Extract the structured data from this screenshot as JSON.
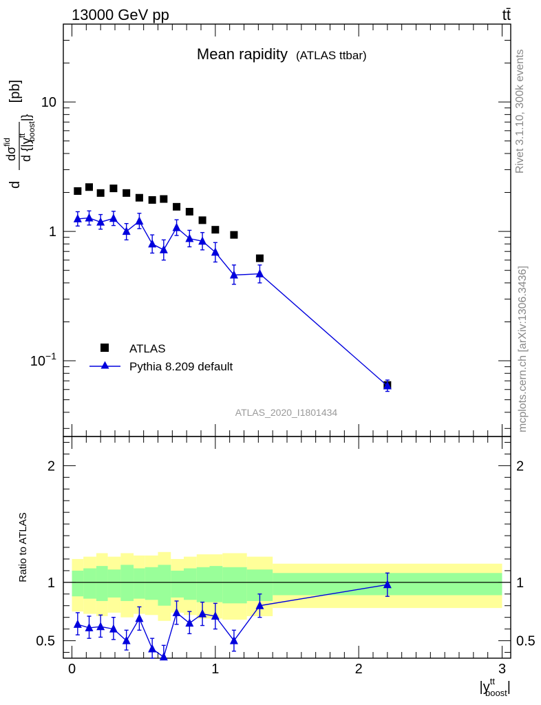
{
  "header": {
    "energy_label": "13000 GeV pp",
    "process_label": "tt̄"
  },
  "side": {
    "rivet_label": "Rivet 3.1.10,  300k events",
    "mcplots_label": "mcplots.cern.ch [arXiv:1306.3436]"
  },
  "chart_data": [
    {
      "type": "scatter",
      "panel": "main",
      "title": "Mean rapidity",
      "subtitle": "(ATLAS ttbar)",
      "watermark": "ATLAS_2020_I1801434",
      "ylabel": "d dσ/d {|y^tt_boost|} [pb]",
      "ylabel_parts": {
        "num_prefix": "d",
        "num": "dσ",
        "num_sup": "fid",
        "den": "d {|y",
        "den_sup": "tt",
        "den_sub": "boost",
        "den_close": "|}",
        "unit": "[pb]"
      },
      "yscale": "log",
      "xlim": [
        -0.06,
        3.06
      ],
      "ylim": [
        0.026,
        40
      ],
      "yticks": [
        {
          "value": 0.1,
          "base": "10",
          "exp": "−1"
        },
        {
          "value": 1,
          "base": "1",
          "exp": ""
        },
        {
          "value": 10,
          "base": "10",
          "exp": ""
        }
      ],
      "grid": false,
      "legend_position": "lower-left",
      "series": [
        {
          "name": "ATLAS",
          "color": "#000000",
          "marker": "square",
          "points": [
            {
              "x": 0.04,
              "y": 2.05
            },
            {
              "x": 0.12,
              "y": 2.2
            },
            {
              "x": 0.2,
              "y": 1.98
            },
            {
              "x": 0.29,
              "y": 2.15
            },
            {
              "x": 0.38,
              "y": 1.98
            },
            {
              "x": 0.47,
              "y": 1.82
            },
            {
              "x": 0.56,
              "y": 1.75
            },
            {
              "x": 0.64,
              "y": 1.78
            },
            {
              "x": 0.73,
              "y": 1.55
            },
            {
              "x": 0.82,
              "y": 1.42
            },
            {
              "x": 0.91,
              "y": 1.22
            },
            {
              "x": 1.0,
              "y": 1.03
            },
            {
              "x": 1.13,
              "y": 0.94
            },
            {
              "x": 1.31,
              "y": 0.62
            },
            {
              "x": 2.2,
              "y": 0.065
            }
          ]
        },
        {
          "name": "Pythia 8.209 default",
          "color": "#0000dd",
          "marker": "triangle",
          "points": [
            {
              "x": 0.04,
              "y": 1.25,
              "lo": 1.1,
              "hi": 1.42
            },
            {
              "x": 0.12,
              "y": 1.27,
              "lo": 1.12,
              "hi": 1.44
            },
            {
              "x": 0.2,
              "y": 1.18,
              "lo": 1.04,
              "hi": 1.35
            },
            {
              "x": 0.29,
              "y": 1.26,
              "lo": 1.11,
              "hi": 1.43
            },
            {
              "x": 0.38,
              "y": 1.0,
              "lo": 0.86,
              "hi": 1.15
            },
            {
              "x": 0.47,
              "y": 1.2,
              "lo": 1.05,
              "hi": 1.38
            },
            {
              "x": 0.56,
              "y": 0.8,
              "lo": 0.68,
              "hi": 0.94
            },
            {
              "x": 0.64,
              "y": 0.72,
              "lo": 0.6,
              "hi": 0.86
            },
            {
              "x": 0.73,
              "y": 1.07,
              "lo": 0.93,
              "hi": 1.23
            },
            {
              "x": 0.82,
              "y": 0.88,
              "lo": 0.76,
              "hi": 1.02
            },
            {
              "x": 0.91,
              "y": 0.84,
              "lo": 0.72,
              "hi": 0.98
            },
            {
              "x": 1.0,
              "y": 0.69,
              "lo": 0.58,
              "hi": 0.82
            },
            {
              "x": 1.13,
              "y": 0.46,
              "lo": 0.39,
              "hi": 0.55
            },
            {
              "x": 1.31,
              "y": 0.47,
              "lo": 0.4,
              "hi": 0.55
            },
            {
              "x": 2.2,
              "y": 0.064,
              "lo": 0.058,
              "hi": 0.071
            }
          ]
        }
      ]
    },
    {
      "type": "line",
      "panel": "ratio",
      "xlabel": "|y^tt_boost|",
      "xlabel_parts": {
        "main": "|y",
        "sup": "tt",
        "sub": "boost",
        "close": "|"
      },
      "ylabel": "Ratio to ATLAS",
      "xlim": [
        -0.06,
        3.06
      ],
      "ylim": [
        0.35,
        2.25
      ],
      "xticks": [
        0,
        1,
        2,
        3
      ],
      "yticks": [
        0.5,
        1,
        2
      ],
      "reference_line": 1,
      "uncertainty_band": {
        "bins": [
          {
            "x0": 0.0,
            "x1": 0.08,
            "inner": [
              0.88,
              1.1
            ],
            "outer": [
              0.75,
              1.2
            ]
          },
          {
            "x0": 0.08,
            "x1": 0.17,
            "inner": [
              0.86,
              1.12
            ],
            "outer": [
              0.73,
              1.22
            ]
          },
          {
            "x0": 0.17,
            "x1": 0.25,
            "inner": [
              0.84,
              1.14
            ],
            "outer": [
              0.71,
              1.25
            ]
          },
          {
            "x0": 0.25,
            "x1": 0.34,
            "inner": [
              0.87,
              1.11
            ],
            "outer": [
              0.74,
              1.22
            ]
          },
          {
            "x0": 0.34,
            "x1": 0.43,
            "inner": [
              0.84,
              1.15
            ],
            "outer": [
              0.7,
              1.25
            ]
          },
          {
            "x0": 0.43,
            "x1": 0.51,
            "inner": [
              0.86,
              1.12
            ],
            "outer": [
              0.73,
              1.23
            ]
          },
          {
            "x0": 0.51,
            "x1": 0.6,
            "inner": [
              0.85,
              1.13
            ],
            "outer": [
              0.72,
              1.23
            ]
          },
          {
            "x0": 0.6,
            "x1": 0.69,
            "inner": [
              0.8,
              1.15
            ],
            "outer": [
              0.67,
              1.26
            ]
          },
          {
            "x0": 0.69,
            "x1": 0.78,
            "inner": [
              0.87,
              1.1
            ],
            "outer": [
              0.74,
              1.2
            ]
          },
          {
            "x0": 0.78,
            "x1": 0.87,
            "inner": [
              0.85,
              1.12
            ],
            "outer": [
              0.72,
              1.22
            ]
          },
          {
            "x0": 0.87,
            "x1": 0.96,
            "inner": [
              0.83,
              1.13
            ],
            "outer": [
              0.69,
              1.24
            ]
          },
          {
            "x0": 0.96,
            "x1": 1.05,
            "inner": [
              0.83,
              1.14
            ],
            "outer": [
              0.69,
              1.24
            ]
          },
          {
            "x0": 1.05,
            "x1": 1.22,
            "inner": [
              0.82,
              1.13
            ],
            "outer": [
              0.68,
              1.25
            ]
          },
          {
            "x0": 1.22,
            "x1": 1.4,
            "inner": [
              0.84,
              1.11
            ],
            "outer": [
              0.71,
              1.22
            ]
          },
          {
            "x0": 1.4,
            "x1": 3.0,
            "inner": [
              0.89,
              1.08
            ],
            "outer": [
              0.78,
              1.16
            ]
          }
        ],
        "inner_color": "#99ff99",
        "outer_color": "#ffff99"
      },
      "series": [
        {
          "name": "Pythia 8.209 default",
          "color": "#0000dd",
          "marker": "triangle",
          "points": [
            {
              "x": 0.04,
              "y": 0.64,
              "lo": 0.55,
              "hi": 0.74
            },
            {
              "x": 0.12,
              "y": 0.61,
              "lo": 0.52,
              "hi": 0.71
            },
            {
              "x": 0.2,
              "y": 0.62,
              "lo": 0.53,
              "hi": 0.72
            },
            {
              "x": 0.29,
              "y": 0.6,
              "lo": 0.51,
              "hi": 0.7
            },
            {
              "x": 0.38,
              "y": 0.5,
              "lo": 0.42,
              "hi": 0.59
            },
            {
              "x": 0.47,
              "y": 0.69,
              "lo": 0.59,
              "hi": 0.79
            },
            {
              "x": 0.56,
              "y": 0.43,
              "lo": 0.35,
              "hi": 0.52
            },
            {
              "x": 0.64,
              "y": 0.36,
              "lo": 0.28,
              "hi": 0.46
            },
            {
              "x": 0.73,
              "y": 0.74,
              "lo": 0.64,
              "hi": 0.84
            },
            {
              "x": 0.82,
              "y": 0.65,
              "lo": 0.56,
              "hi": 0.75
            },
            {
              "x": 0.91,
              "y": 0.73,
              "lo": 0.63,
              "hi": 0.83
            },
            {
              "x": 1.0,
              "y": 0.71,
              "lo": 0.6,
              "hi": 0.82
            },
            {
              "x": 1.13,
              "y": 0.5,
              "lo": 0.41,
              "hi": 0.59
            },
            {
              "x": 1.31,
              "y": 0.8,
              "lo": 0.7,
              "hi": 0.9
            },
            {
              "x": 2.2,
              "y": 0.98,
              "lo": 0.88,
              "hi": 1.08
            }
          ]
        }
      ]
    }
  ]
}
